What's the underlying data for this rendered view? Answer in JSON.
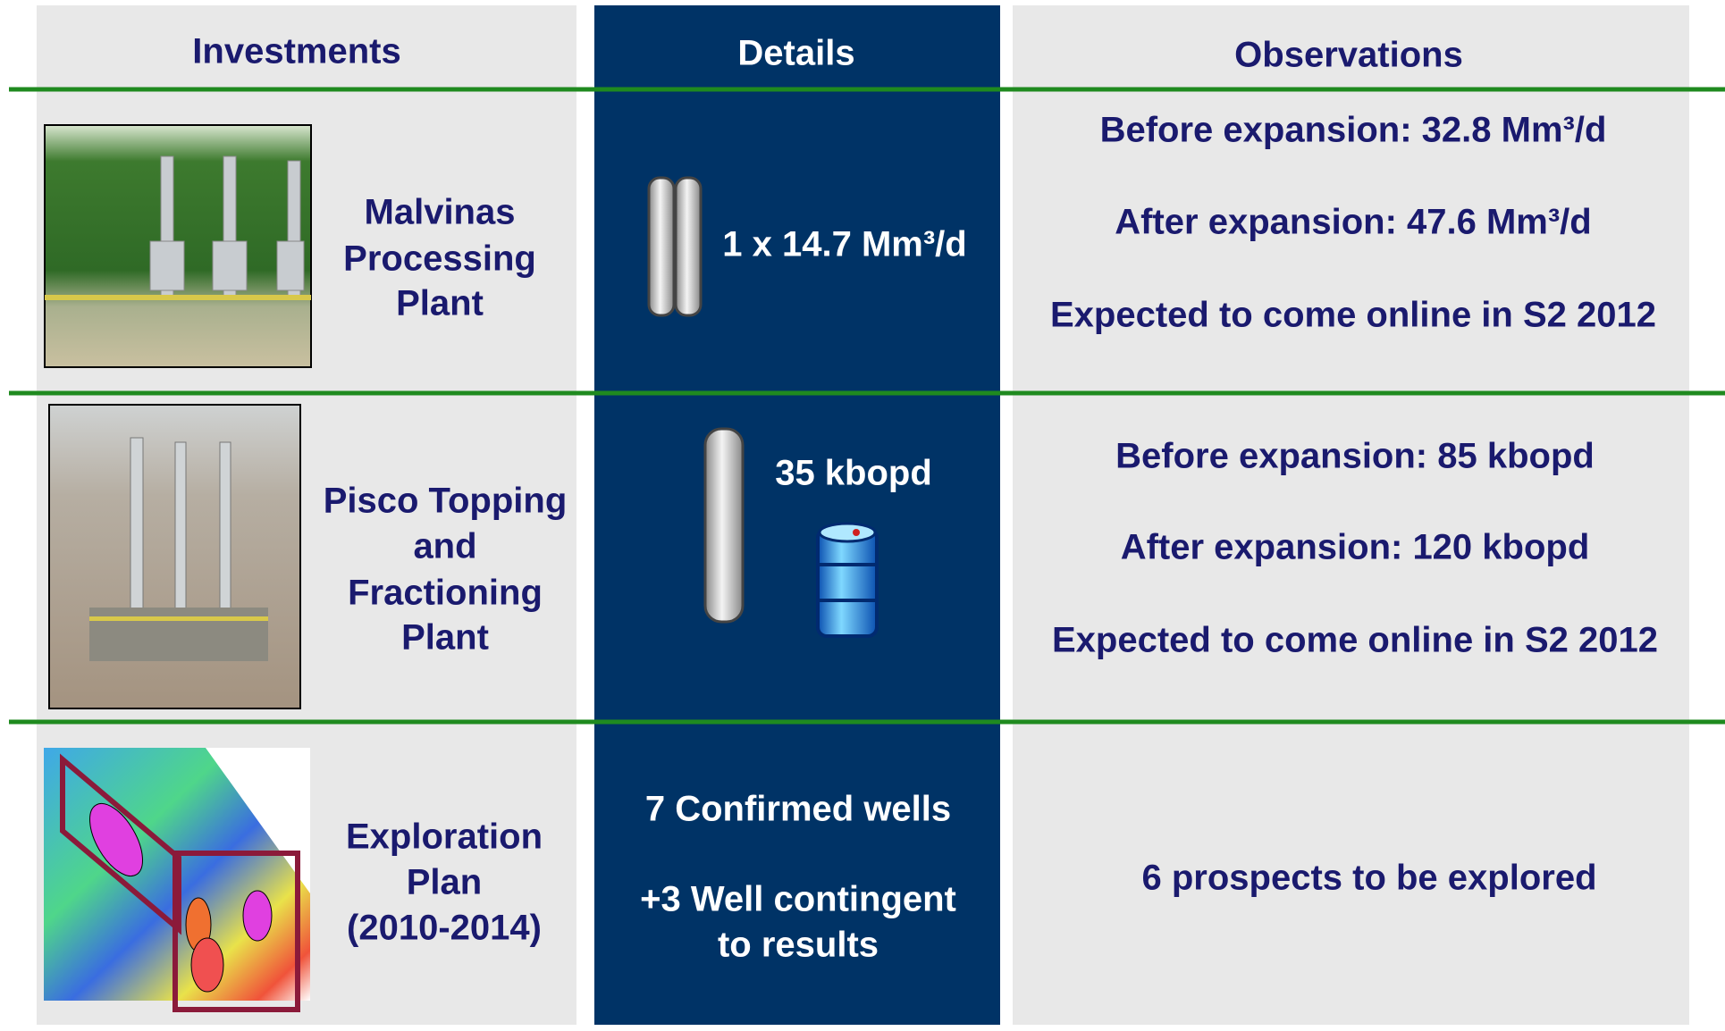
{
  "header": {
    "investments": "Investments",
    "details": "Details",
    "observations": "Observations"
  },
  "rows": [
    {
      "investment": [
        "Malvinas",
        "Processing",
        "Plant"
      ],
      "details": [
        "1 x 14.7 Mm³/d"
      ],
      "observations": [
        "Before expansion: 32.8 Mm³/d",
        "After expansion: 47.6 Mm³/d",
        "Expected to come online in S2 2012"
      ]
    },
    {
      "investment": [
        "Pisco Topping",
        "and",
        "Fractioning",
        "Plant"
      ],
      "details": [
        "35 kbopd"
      ],
      "observations": [
        "Before expansion: 85 kbopd",
        "After expansion: 120 kbopd",
        "Expected to come online in S2 2012"
      ]
    },
    {
      "investment": [
        "Exploration",
        "Plan",
        "(2010-2014)"
      ],
      "details": [
        "7 Confirmed wells",
        "+3 Well contingent",
        "to results"
      ],
      "observations": [
        "6 prospects to be explored"
      ]
    }
  ]
}
